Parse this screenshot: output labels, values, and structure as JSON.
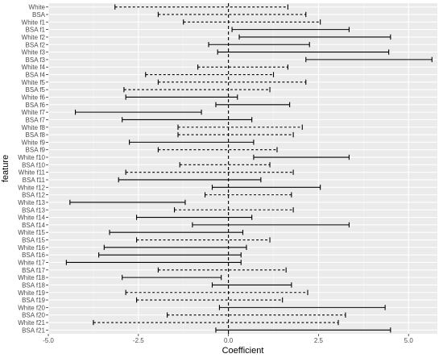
{
  "chart_data": {
    "type": "errorbar",
    "xlabel": "Coefficient",
    "ylabel": "feature",
    "xlim": [
      -5.0,
      5.8
    ],
    "xticks": [
      -5.0,
      -2.5,
      0.0,
      2.5,
      5.0
    ],
    "xtick_labels": [
      "-5.0",
      "-2.5",
      "0.0",
      "2.5",
      "5.0"
    ],
    "reference_line_x": 0,
    "grid": true,
    "line_styles": {
      "solid": "solid",
      "dashed": "dashed"
    },
    "rows": [
      {
        "feature": "White",
        "low": -3.15,
        "high": 1.65,
        "style": "dashed"
      },
      {
        "feature": "BSA",
        "low": -1.95,
        "high": 2.15,
        "style": "dashed"
      },
      {
        "feature": "White f1",
        "low": -1.25,
        "high": 2.55,
        "style": "dashed"
      },
      {
        "feature": "BSA f1",
        "low": 0.1,
        "high": 3.35,
        "style": "solid"
      },
      {
        "feature": "White f2",
        "low": 0.3,
        "high": 4.5,
        "style": "solid"
      },
      {
        "feature": "BSA f2",
        "low": -0.55,
        "high": 2.25,
        "style": "solid"
      },
      {
        "feature": "White f3",
        "low": -0.3,
        "high": 4.45,
        "style": "solid"
      },
      {
        "feature": "BSA f3",
        "low": 2.15,
        "high": 5.65,
        "style": "solid"
      },
      {
        "feature": "White f4",
        "low": -0.85,
        "high": 1.65,
        "style": "dashed"
      },
      {
        "feature": "BSA f4",
        "low": -2.3,
        "high": 1.25,
        "style": "dashed"
      },
      {
        "feature": "White f5",
        "low": -1.95,
        "high": 2.15,
        "style": "dashed"
      },
      {
        "feature": "BSA f5",
        "low": -2.9,
        "high": 1.15,
        "style": "dashed"
      },
      {
        "feature": "White f6",
        "low": -2.85,
        "high": 0.25,
        "style": "solid"
      },
      {
        "feature": "BSA f6",
        "low": -0.35,
        "high": 1.7,
        "style": "solid"
      },
      {
        "feature": "White f7",
        "low": -4.25,
        "high": -0.75,
        "style": "solid"
      },
      {
        "feature": "BSA f7",
        "low": -2.95,
        "high": 0.65,
        "style": "solid"
      },
      {
        "feature": "White f8",
        "low": -1.4,
        "high": 2.05,
        "style": "dashed"
      },
      {
        "feature": "BSA f8",
        "low": -1.4,
        "high": 1.8,
        "style": "dashed"
      },
      {
        "feature": "White f9",
        "low": -2.75,
        "high": 0.7,
        "style": "solid"
      },
      {
        "feature": "BSA f9",
        "low": -1.95,
        "high": 1.35,
        "style": "dashed"
      },
      {
        "feature": "White f10",
        "low": 0.7,
        "high": 3.35,
        "style": "solid"
      },
      {
        "feature": "BSA f10",
        "low": -1.35,
        "high": 1.15,
        "style": "dashed"
      },
      {
        "feature": "White f11",
        "low": -2.85,
        "high": 1.8,
        "style": "dashed"
      },
      {
        "feature": "BSA f11",
        "low": -3.05,
        "high": 0.9,
        "style": "solid"
      },
      {
        "feature": "White f12",
        "low": -0.45,
        "high": 2.55,
        "style": "solid"
      },
      {
        "feature": "BSA f12",
        "low": -0.65,
        "high": 1.75,
        "style": "dashed"
      },
      {
        "feature": "White f13",
        "low": -4.4,
        "high": -1.2,
        "style": "solid"
      },
      {
        "feature": "BSA f13",
        "low": -1.5,
        "high": 1.8,
        "style": "dashed"
      },
      {
        "feature": "White f14",
        "low": -2.55,
        "high": 0.65,
        "style": "solid"
      },
      {
        "feature": "BSA f14",
        "low": -1.0,
        "high": 3.35,
        "style": "solid"
      },
      {
        "feature": "White f15",
        "low": -3.3,
        "high": 0.4,
        "style": "solid"
      },
      {
        "feature": "BSA f15",
        "low": -2.55,
        "high": 1.15,
        "style": "dashed"
      },
      {
        "feature": "White f16",
        "low": -3.45,
        "high": 0.5,
        "style": "solid"
      },
      {
        "feature": "BSA f16",
        "low": -3.6,
        "high": 0.35,
        "style": "solid"
      },
      {
        "feature": "White f17",
        "low": -4.5,
        "high": 0.35,
        "style": "solid"
      },
      {
        "feature": "BSA f17",
        "low": -1.95,
        "high": 1.6,
        "style": "dashed"
      },
      {
        "feature": "White f18",
        "low": -2.95,
        "high": -0.2,
        "style": "solid"
      },
      {
        "feature": "BSA f18",
        "low": -0.45,
        "high": 1.75,
        "style": "solid"
      },
      {
        "feature": "White f19",
        "low": -2.85,
        "high": 2.2,
        "style": "dashed"
      },
      {
        "feature": "BSA f19",
        "low": -2.55,
        "high": 1.5,
        "style": "dashed"
      },
      {
        "feature": "White f20",
        "low": -0.25,
        "high": 4.35,
        "style": "solid"
      },
      {
        "feature": "BSA f20",
        "low": -1.7,
        "high": 3.25,
        "style": "dashed"
      },
      {
        "feature": "White f21",
        "low": -3.75,
        "high": 3.05,
        "style": "dashed"
      },
      {
        "feature": "BSA f21",
        "low": -0.35,
        "high": 4.5,
        "style": "solid"
      }
    ]
  }
}
